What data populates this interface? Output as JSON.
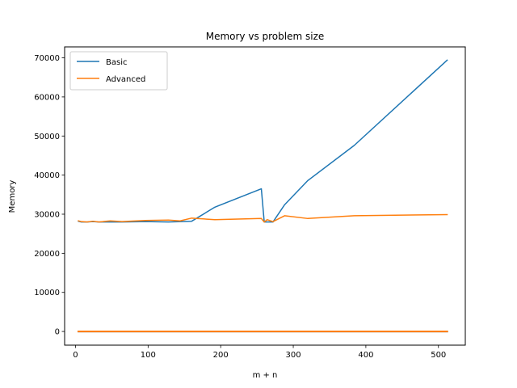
{
  "chart_data": {
    "type": "line",
    "title": "Memory vs problem size",
    "xlabel": "m + n",
    "ylabel": "Memory",
    "xlim": [
      -15,
      537
    ],
    "ylim": [
      -3500,
      72800
    ],
    "xticks": [
      0,
      100,
      200,
      300,
      400,
      500
    ],
    "yticks": [
      0,
      10000,
      20000,
      30000,
      40000,
      50000,
      60000,
      70000
    ],
    "grid": false,
    "legend_position": "top-left",
    "series": [
      {
        "name": "Basic",
        "color": "#1f77b4",
        "points": [
          [
            4,
            28200
          ],
          [
            8,
            28000
          ],
          [
            16,
            28000
          ],
          [
            24,
            28100
          ],
          [
            32,
            28000
          ],
          [
            48,
            28000
          ],
          [
            64,
            28000
          ],
          [
            96,
            28100
          ],
          [
            128,
            28000
          ],
          [
            160,
            28200
          ],
          [
            192,
            31800
          ],
          [
            256,
            36500
          ],
          [
            260,
            28000
          ],
          [
            272,
            28000
          ],
          [
            288,
            32400
          ],
          [
            320,
            38600
          ],
          [
            384,
            47600
          ],
          [
            512,
            69400
          ]
        ]
      },
      {
        "name": "Advanced",
        "color": "#ff7f0e",
        "points": [
          [
            4,
            28300
          ],
          [
            8,
            28100
          ],
          [
            16,
            28000
          ],
          [
            24,
            28200
          ],
          [
            32,
            28000
          ],
          [
            48,
            28300
          ],
          [
            64,
            28100
          ],
          [
            96,
            28400
          ],
          [
            128,
            28500
          ],
          [
            144,
            28300
          ],
          [
            160,
            29000
          ],
          [
            192,
            28600
          ],
          [
            256,
            28900
          ],
          [
            260,
            28000
          ],
          [
            264,
            28600
          ],
          [
            272,
            28100
          ],
          [
            288,
            29600
          ],
          [
            320,
            28900
          ],
          [
            384,
            29600
          ],
          [
            512,
            29900
          ]
        ]
      },
      {
        "name": "",
        "color": "#1f77b4",
        "points": [
          [
            4,
            0
          ],
          [
            512,
            0
          ]
        ]
      },
      {
        "name": "",
        "color": "#ff7f0e",
        "points": [
          [
            4,
            0
          ],
          [
            512,
            0
          ]
        ]
      }
    ]
  }
}
